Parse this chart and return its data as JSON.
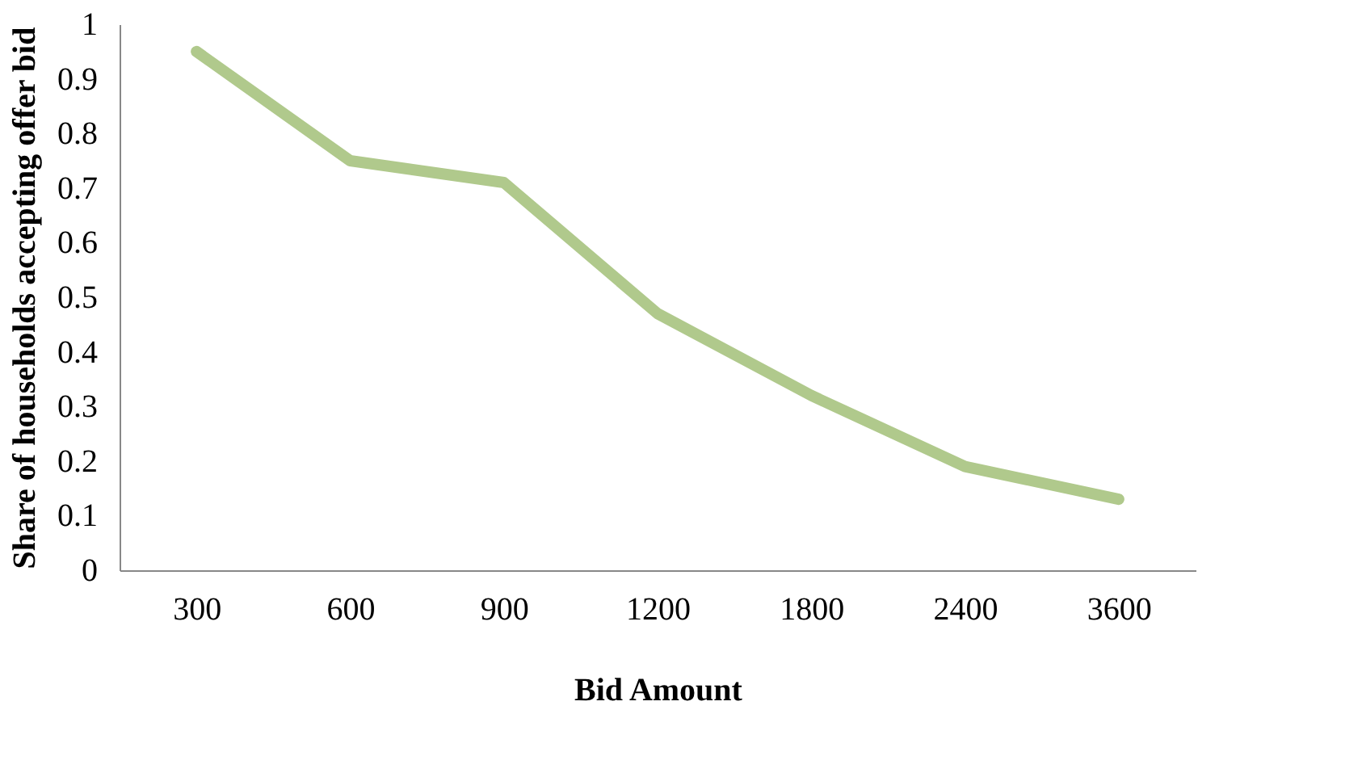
{
  "chart_data": {
    "type": "line",
    "xlabel": "Bid Amount",
    "ylabel": "Share of households accepting offer bid",
    "categories": [
      "300",
      "600",
      "900",
      "1200",
      "1800",
      "2400",
      "3600"
    ],
    "series": [
      {
        "color": "#b0c98c",
        "values": [
          0.95,
          0.75,
          0.71,
          0.47,
          0.32,
          0.19,
          0.13
        ]
      }
    ],
    "ylim": [
      0,
      1
    ],
    "yticks": [
      0,
      0.1,
      0.2,
      0.3,
      0.4,
      0.5,
      0.6,
      0.7,
      0.8,
      0.9,
      1
    ],
    "grid": false,
    "legend": false,
    "marker": "none",
    "line_style": "solid"
  }
}
